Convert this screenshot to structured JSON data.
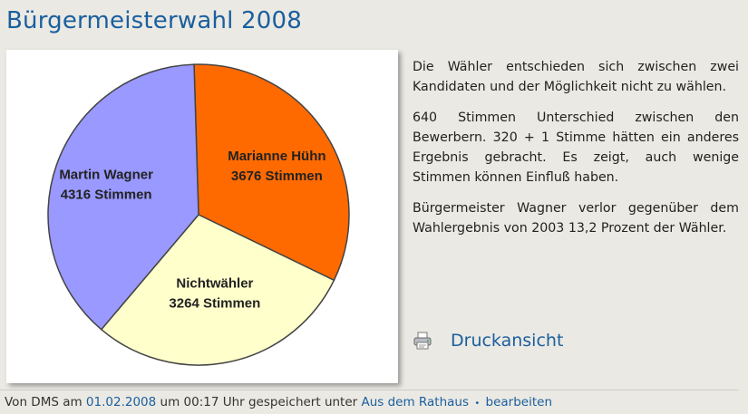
{
  "page": {
    "title": "Bürgermeisterwahl 2008",
    "paragraphs": [
      "Die Wähler entschieden sich zwischen zwei Kandidaten und der Möglichkeit nicht zu wählen.",
      "640 Stimmen Unterschied zwischen den Bewerbern. 320 + 1 Stimme hätten ein anderes Ergebnis gebracht. Es zeigt, auch wenige Stimmen können Einfluß haben.",
      "Bürgermeister Wagner verlor gegenüber dem Wahlergebnis von 2003 13,2 Prozent der Wähler."
    ],
    "print_label": "Druckansicht",
    "print_icon": "printer-icon"
  },
  "footer": {
    "prefix": "Von DMS am",
    "date": "01.02.2008",
    "middle": "um 00:17 Uhr gespeichert unter",
    "category": "Aus dem Rathaus",
    "bullet": "•",
    "edit": "bearbeiten"
  },
  "colors": {
    "accent": "#1a5f9e",
    "background": "#ebe9e3"
  },
  "chart_data": {
    "type": "pie",
    "title": "",
    "labels": [
      "Marianne Hühn",
      "Nichtwähler",
      "Martin Wagner"
    ],
    "value_labels": [
      "3676 Stimmen",
      "3264 Stimmen",
      "4316 Stimmen"
    ],
    "values": [
      3676,
      3264,
      4316
    ],
    "colors": [
      "#ff6a00",
      "#ffffcc",
      "#9999ff"
    ]
  }
}
